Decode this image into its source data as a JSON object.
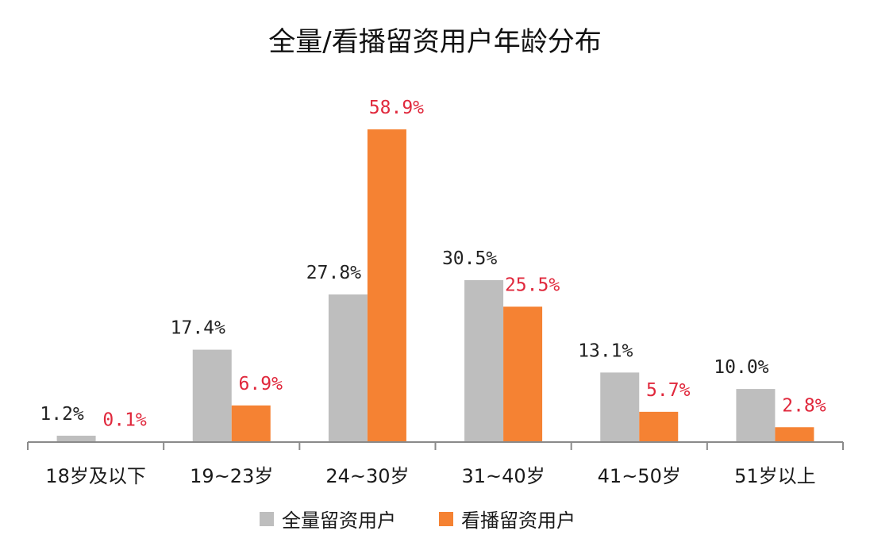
{
  "chart_data": {
    "type": "bar",
    "title": "全量/看播留资用户年龄分布",
    "categories": [
      "18岁及以下",
      "19~23岁",
      "24~30岁",
      "31~40岁",
      "41~50岁",
      "51岁以上"
    ],
    "series": [
      {
        "name": "全量留资用户",
        "values": [
          1.2,
          17.4,
          27.8,
          30.5,
          13.1,
          10.0
        ],
        "labels": [
          "1.2%",
          "17.4%",
          "27.8%",
          "30.5%",
          "13.1%",
          "10.0%"
        ],
        "color": "#bebebe",
        "label_color": "#222222"
      },
      {
        "name": "看播留资用户",
        "values": [
          0.1,
          6.9,
          58.9,
          25.5,
          5.7,
          2.8
        ],
        "labels": [
          "0.1%",
          "6.9%",
          "58.9%",
          "25.5%",
          "5.7%",
          "2.8%"
        ],
        "color": "#f58233",
        "label_color": "#e0283c"
      }
    ],
    "ylim": [
      0,
      60
    ],
    "legend_position": "bottom",
    "grid": false
  }
}
